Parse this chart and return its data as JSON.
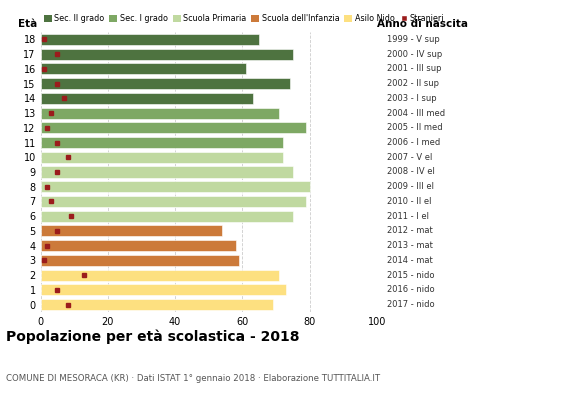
{
  "ages": [
    18,
    17,
    16,
    15,
    14,
    13,
    12,
    11,
    10,
    9,
    8,
    7,
    6,
    5,
    4,
    3,
    2,
    1,
    0
  ],
  "bar_values": [
    65,
    75,
    61,
    74,
    63,
    71,
    79,
    72,
    72,
    75,
    80,
    79,
    75,
    54,
    58,
    59,
    71,
    73,
    69
  ],
  "stranieri": [
    1,
    5,
    1,
    5,
    7,
    3,
    2,
    5,
    8,
    5,
    2,
    3,
    9,
    5,
    2,
    1,
    13,
    5,
    8
  ],
  "bar_colors": [
    "#4e7340",
    "#4e7340",
    "#4e7340",
    "#4e7340",
    "#4e7340",
    "#7ea864",
    "#7ea864",
    "#7ea864",
    "#c0d9a0",
    "#c0d9a0",
    "#c0d9a0",
    "#c0d9a0",
    "#c0d9a0",
    "#cc7a3a",
    "#cc7a3a",
    "#cc7a3a",
    "#fde080",
    "#fde080",
    "#fde080"
  ],
  "right_labels": [
    "1999 - V sup",
    "2000 - IV sup",
    "2001 - III sup",
    "2002 - II sup",
    "2003 - I sup",
    "2004 - III med",
    "2005 - II med",
    "2006 - I med",
    "2007 - V el",
    "2008 - IV el",
    "2009 - III el",
    "2010 - II el",
    "2011 - I el",
    "2012 - mat",
    "2013 - mat",
    "2014 - mat",
    "2015 - nido",
    "2016 - nido",
    "2017 - nido"
  ],
  "legend_labels": [
    "Sec. II grado",
    "Sec. I grado",
    "Scuola Primaria",
    "Scuola dell'Infanzia",
    "Asilo Nido",
    "Stranieri"
  ],
  "legend_colors": [
    "#4e7340",
    "#7ea864",
    "#c0d9a0",
    "#cc7a3a",
    "#fde080",
    "#9b1c1c"
  ],
  "title": "Popolazione per età scolastica - 2018",
  "subtitle": "COMUNE DI MESORACA (KR) · Dati ISTAT 1° gennaio 2018 · Elaborazione TUTTITALIA.IT",
  "xlabel_left": "Età",
  "xlabel_right": "Anno di nascita",
  "xlim": [
    0,
    100
  ],
  "xticks": [
    0,
    20,
    40,
    60,
    80,
    100
  ],
  "stranieri_color": "#9b1c1c",
  "bar_height": 0.75,
  "background_color": "#ffffff",
  "grid_color": "#cccccc"
}
